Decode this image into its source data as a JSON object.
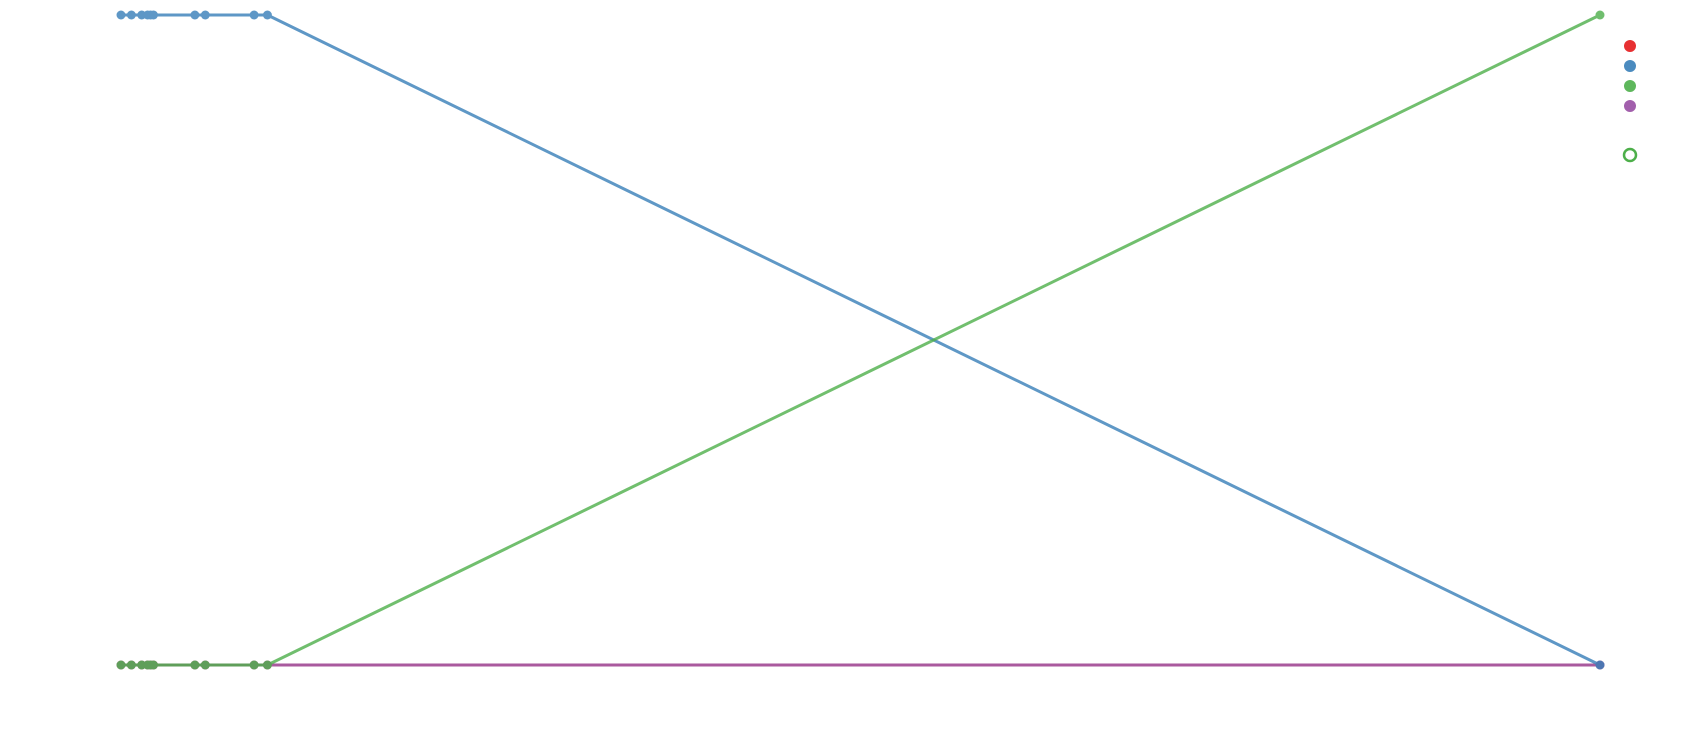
{
  "chart_data": {
    "type": "line",
    "title": "",
    "xlabel": "",
    "ylabel": "",
    "grid": false,
    "legend_position": "top-right",
    "xlim": [
      0,
      1
    ],
    "ylim": [
      0,
      1
    ],
    "x": [
      0.0,
      0.007,
      0.014,
      0.018,
      0.02,
      0.022,
      0.05,
      0.057,
      0.09,
      0.099,
      1.0
    ],
    "series": [
      {
        "color": "#e41a1c",
        "opacity": 0.5,
        "marker": "filled",
        "values": [
          0,
          0,
          0,
          0,
          0,
          0,
          0,
          0,
          0,
          0,
          0
        ]
      },
      {
        "color": "#377eb8",
        "opacity": 0.8,
        "marker": "filled",
        "values": [
          1,
          1,
          1,
          1,
          1,
          1,
          1,
          1,
          1,
          1,
          0
        ]
      },
      {
        "color": "#4daf4a",
        "opacity": 0.8,
        "marker": "filled",
        "values": [
          0,
          0,
          0,
          0,
          0,
          0,
          0,
          0,
          0,
          0,
          1
        ]
      },
      {
        "color": "#984ea3",
        "opacity": 0.8,
        "marker": "filled",
        "values": [
          0,
          0,
          0,
          0,
          0,
          0,
          0,
          0,
          0,
          0,
          0
        ]
      }
    ],
    "legend": [
      {
        "color": "#e41a1c",
        "marker": "filled"
      },
      {
        "color": "#377eb8",
        "marker": "filled"
      },
      {
        "color": "#4daf4a",
        "marker": "filled"
      },
      {
        "color": "#984ea3",
        "marker": "filled"
      },
      {
        "color": "#4daf4a",
        "marker": "hollow"
      }
    ]
  }
}
